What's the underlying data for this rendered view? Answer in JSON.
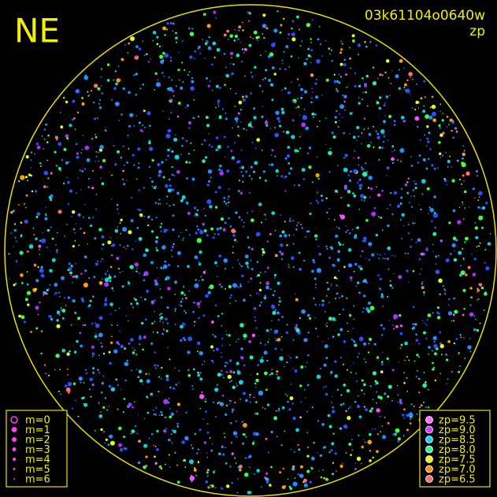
{
  "header": {
    "station": "NE",
    "frame": "03k61104o0640w",
    "mode": "zp"
  },
  "legend_magnitude": [
    "m=0",
    "m=1",
    "m=2",
    "m=3",
    "m=4",
    "m=5",
    "m=6"
  ],
  "legend_zp": [
    "zp=9.5",
    "zp=9.0",
    "zp=8.5",
    "zp=8.0",
    "zp=7.5",
    "zp=7.0",
    "zp=6.5"
  ]
}
